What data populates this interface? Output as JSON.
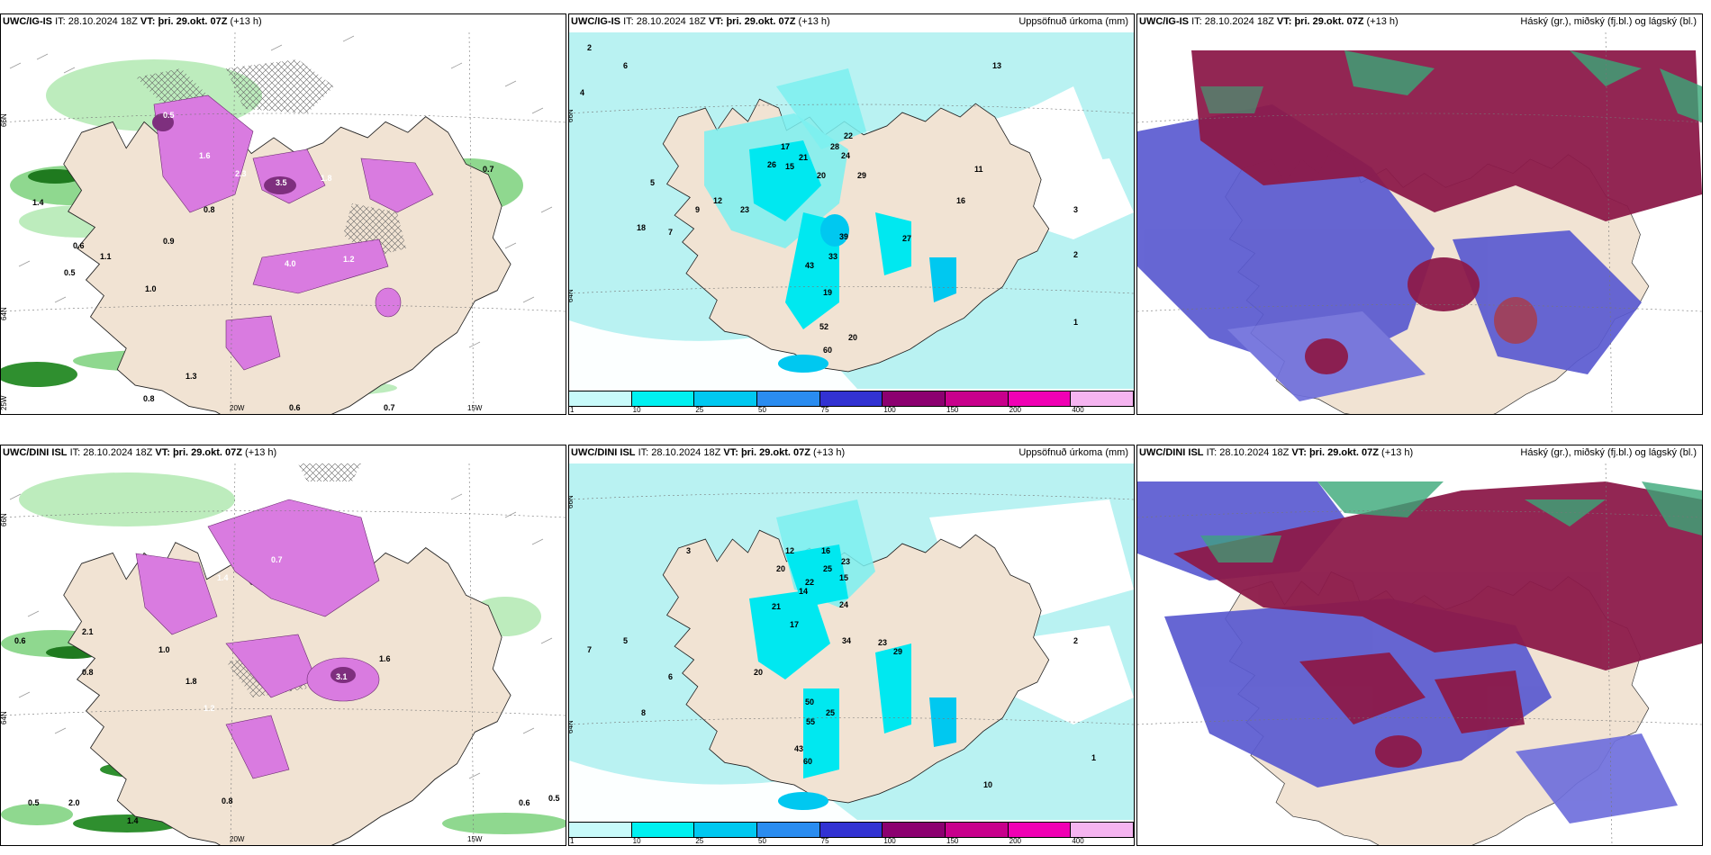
{
  "panels": {
    "p1": {
      "model": "UWC/IG-IS",
      "it_label": "IT:",
      "it": "28.10.2024 18Z",
      "vt_label": "VT:",
      "vt": "þri. 29.okt. 07Z",
      "lead": "(+13 h)",
      "title": ""
    },
    "p2": {
      "model": "UWC/IG-IS",
      "it_label": "IT:",
      "it": "28.10.2024 18Z",
      "vt_label": "VT:",
      "vt": "þri. 29.okt. 07Z",
      "lead": "(+13 h)",
      "title": "Uppsöfnuð úrkoma (mm)"
    },
    "p3": {
      "model": "UWC/IG-IS",
      "it_label": "IT:",
      "it": "28.10.2024 18Z",
      "vt_label": "VT:",
      "vt": "þri. 29.okt. 07Z",
      "lead": "(+13 h)",
      "title": "Háský (gr.), miðský (fj.bl.) og lágský (bl.)"
    },
    "p4": {
      "model": "UWC/DINI ISL",
      "it_label": "IT:",
      "it": "28.10.2024 18Z",
      "vt_label": "VT:",
      "vt": "þri. 29.okt. 07Z",
      "lead": "(+13 h)",
      "title": ""
    },
    "p5": {
      "model": "UWC/DINI ISL",
      "it_label": "IT:",
      "it": "28.10.2024 18Z",
      "vt_label": "VT:",
      "vt": "þri. 29.okt. 07Z",
      "lead": "(+13 h)",
      "title": "Uppsöfnuð úrkoma (mm)"
    },
    "p6": {
      "model": "UWC/DINI ISL",
      "it_label": "IT:",
      "it": "28.10.2024 18Z",
      "vt_label": "VT:",
      "vt": "þri. 29.okt. 07Z",
      "lead": "(+13 h)",
      "title": "Háský (gr.), miðský (fj.bl.) og lágský (bl.)"
    }
  },
  "axes": {
    "lat66": "66N",
    "lat64": "64N",
    "lon20": "20W",
    "lon15": "15W",
    "lon25": "25W"
  },
  "colorbar": {
    "ticks": [
      "1",
      "10",
      "25",
      "50",
      "75",
      "100",
      "150",
      "200",
      "400"
    ],
    "colors": [
      "#c8fafa",
      "#00f0f0",
      "#00c8f0",
      "#2a8cf0",
      "#3232d2",
      "#8c0070",
      "#c8008c",
      "#f000b4",
      "#f5b4f0"
    ]
  },
  "labels": {
    "p1": [
      "0.5",
      "1.6",
      "2.3",
      "3.5",
      "1.8",
      "4.0",
      "1.2",
      "0.8",
      "0.9",
      "1.1",
      "0.6",
      "0.5",
      "1.0",
      "1.4",
      "0.7",
      "1.3",
      "0.8",
      "0.6",
      "0.7"
    ],
    "p2": [
      "2",
      "4",
      "6",
      "5",
      "7",
      "9",
      "12",
      "13",
      "23",
      "26",
      "15",
      "17",
      "21",
      "20",
      "29",
      "28",
      "24",
      "22",
      "18",
      "39",
      "43",
      "33",
      "19",
      "52",
      "20",
      "60",
      "11",
      "16",
      "27",
      "3",
      "2",
      "1"
    ],
    "p4": [
      "0.6",
      "1.0",
      "1.4",
      "1.8",
      "0.7",
      "2.1",
      "0.8",
      "1.2",
      "3.1",
      "1.6",
      "0.5",
      "2.0",
      "0.8",
      "1.4",
      "0.6",
      "0.5"
    ],
    "p5": [
      "3",
      "5",
      "7",
      "6",
      "8",
      "12",
      "16",
      "20",
      "25",
      "23",
      "15",
      "22",
      "24",
      "14",
      "21",
      "17",
      "34",
      "20",
      "29",
      "23",
      "50",
      "25",
      "55",
      "43",
      "60",
      "2",
      "1",
      "10"
    ]
  }
}
